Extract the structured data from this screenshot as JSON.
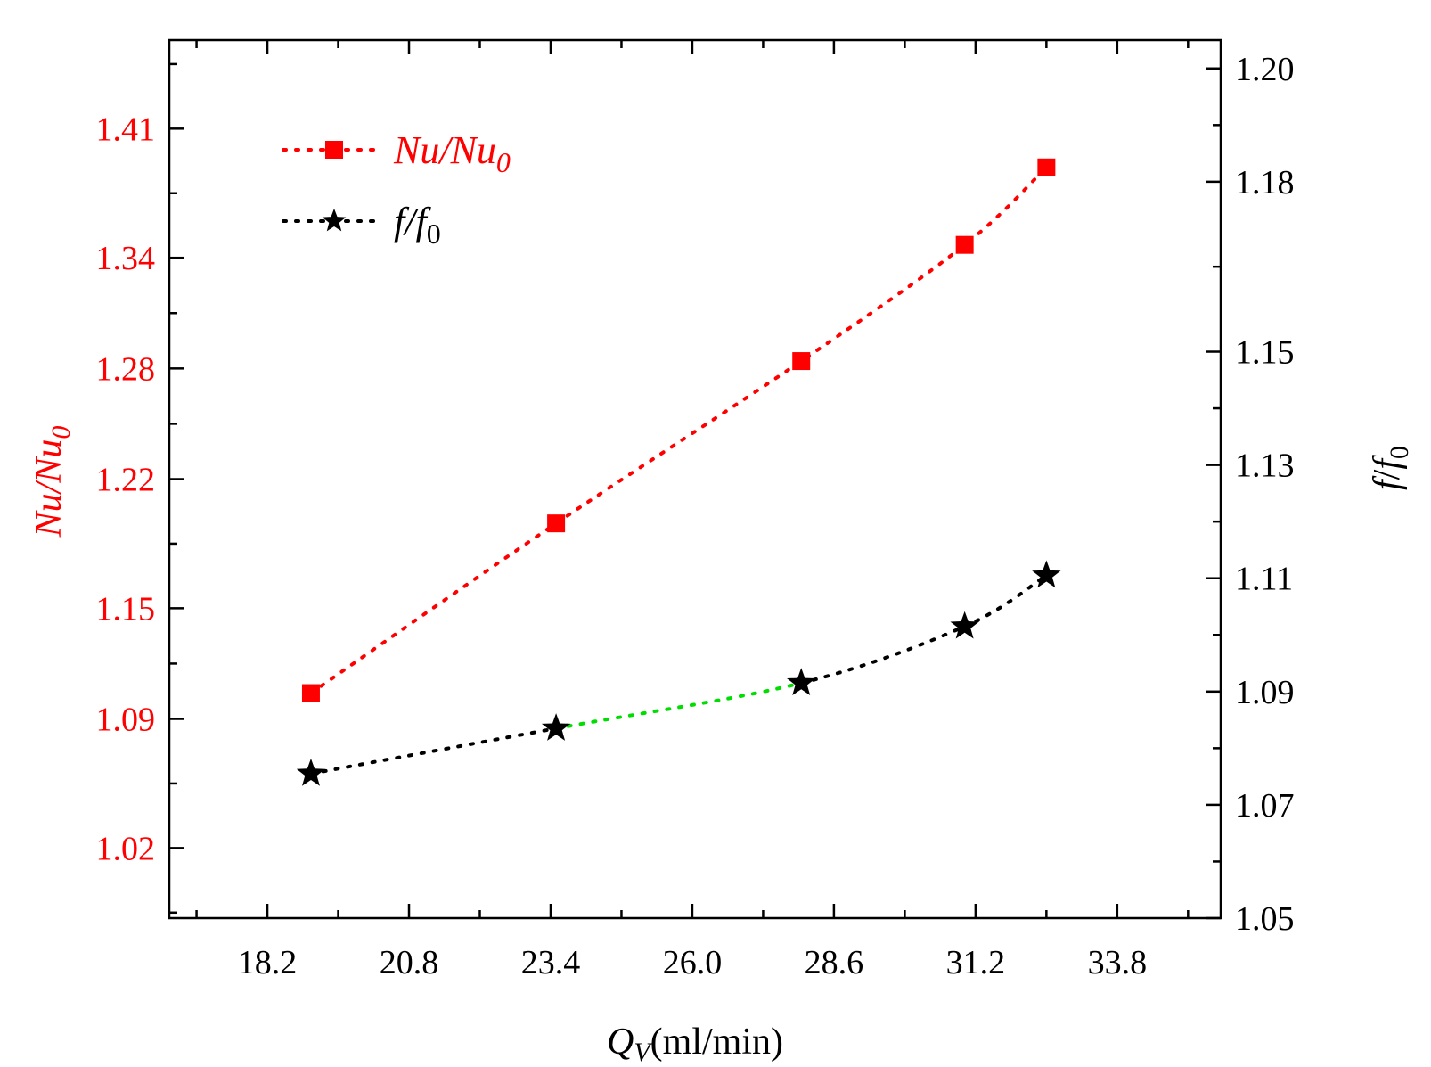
{
  "chart_data": {
    "type": "line",
    "colors": {
      "nu": "#ff0000",
      "f": "#000000",
      "highlight": "#00dd00",
      "axis": "#000000"
    },
    "x": {
      "label_var": "Q",
      "label_sub": "V",
      "label_unit": "(ml/min)",
      "range": [
        16.4,
        35.7
      ],
      "ticks": [
        18.2,
        20.8,
        23.4,
        26.0,
        28.6,
        31.2,
        33.8
      ],
      "tick_labels": [
        "18.2",
        "20.8",
        "23.4",
        "26.0",
        "28.6",
        "31.2",
        "33.8"
      ]
    },
    "y_left": {
      "label_var": "Nu/Nu",
      "label_sub": "0",
      "range": [
        0.982,
        1.458
      ],
      "ticks": [
        1.02,
        1.09,
        1.15,
        1.22,
        1.28,
        1.34,
        1.41
      ],
      "tick_labels": [
        "1.02",
        "1.09",
        "1.15",
        "1.22",
        "1.28",
        "1.34",
        "1.41"
      ]
    },
    "y_right": {
      "label_f": "f",
      "label_sep": "/",
      "label_f2": "f",
      "label_sub": "0",
      "range": [
        1.05,
        1.205
      ],
      "ticks": [
        1.05,
        1.07,
        1.09,
        1.11,
        1.13,
        1.15,
        1.18,
        1.2
      ],
      "tick_labels": [
        "1.05",
        "1.07",
        "1.09",
        "1.11",
        "1.13",
        "1.15",
        "1.18",
        "1.20"
      ]
    },
    "series": [
      {
        "name": "Nu/Nu0",
        "legend_main": "Nu/Nu",
        "legend_sub": "0",
        "axis": "left",
        "marker": "square",
        "x": [
          19.0,
          23.5,
          28.0,
          31.0,
          32.5
        ],
        "y": [
          1.104,
          1.196,
          1.284,
          1.347,
          1.389
        ]
      },
      {
        "name": "f/f0",
        "legend_main": "f/f",
        "legend_sub": "0",
        "axis": "right",
        "marker": "star",
        "x": [
          19.0,
          23.5,
          28.0,
          31.0,
          32.5
        ],
        "y": [
          1.0755,
          1.0835,
          1.0915,
          1.1015,
          1.1105
        ]
      }
    ]
  }
}
